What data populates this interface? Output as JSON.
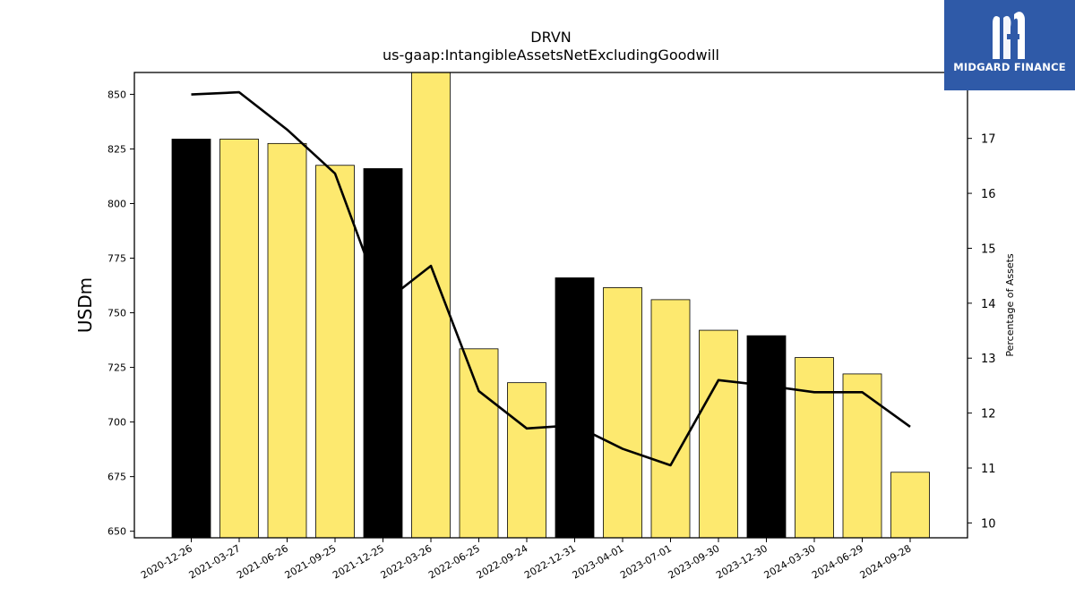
{
  "chart_data": {
    "type": "bar",
    "title": "DRVN",
    "subtitle": "us-gaap:IntangibleAssetsNetExcludingGoodwill",
    "ylabel": "USDm",
    "y2label": "Percentage of Assets",
    "ylim": [
      647,
      860
    ],
    "y2lim": [
      9.73,
      18.2
    ],
    "yticks": [
      650,
      675,
      700,
      725,
      750,
      775,
      800,
      825,
      850
    ],
    "y2ticks": [
      10,
      11,
      12,
      13,
      14,
      15,
      16,
      17
    ],
    "categories": [
      "2020-12-26",
      "2021-03-27",
      "2021-06-26",
      "2021-09-25",
      "2021-12-25",
      "2022-03-26",
      "2022-06-25",
      "2022-09-24",
      "2022-12-31",
      "2023-04-01",
      "2023-07-01",
      "2023-09-30",
      "2023-12-30",
      "2024-03-30",
      "2024-06-29",
      "2024-09-28"
    ],
    "series": [
      {
        "values": [
          829.5,
          829.5,
          827.5,
          817.5,
          816,
          862,
          733.5,
          718,
          766,
          761.5,
          756,
          742,
          739.5,
          729.5,
          722,
          677
        ],
        "colors": [
          "#000000",
          "#fde96f",
          "#fde96f",
          "#fde96f",
          "#000000",
          "#fde96f",
          "#fde96f",
          "#fde96f",
          "#000000",
          "#fde96f",
          "#fde96f",
          "#fde96f",
          "#000000",
          "#fde96f",
          "#fde96f",
          "#fde96f"
        ]
      },
      {
        "type": "line",
        "axis": "secondary",
        "values": [
          17.8,
          17.84,
          17.16,
          16.36,
          14.0,
          14.68,
          12.4,
          11.72,
          11.78,
          11.35,
          11.05,
          12.6,
          12.5,
          12.38,
          12.38,
          11.75
        ],
        "color": "#000000"
      }
    ],
    "grid": false
  },
  "logo": {
    "text": "MIDGARD FINANCE",
    "color": "#2f5aa8"
  }
}
